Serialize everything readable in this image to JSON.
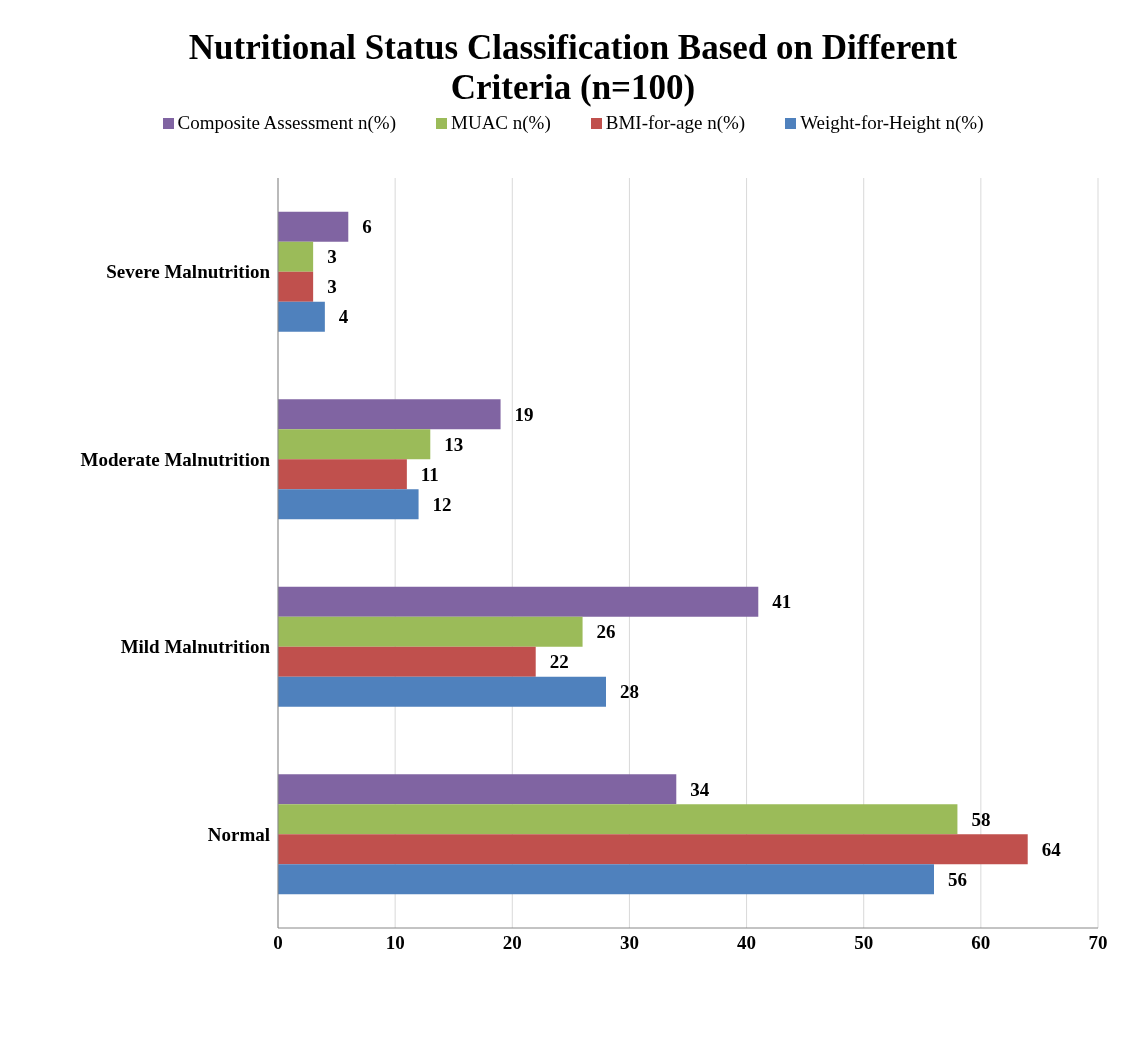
{
  "chart_data": {
    "type": "bar",
    "orientation": "horizontal",
    "title": "Nutritional Status Classification Based on Different Criteria (n=100)",
    "categories": [
      "Severe Malnutrition",
      "Moderate Malnutrition",
      "Mild Malnutrition",
      "Normal"
    ],
    "series": [
      {
        "name": "Composite Assessment n(%)",
        "color": "#8064a2",
        "values": [
          6,
          19,
          41,
          34
        ]
      },
      {
        "name": "MUAC n(%)",
        "color": "#9bbb59",
        "values": [
          3,
          13,
          26,
          58
        ]
      },
      {
        "name": "BMI-for-age n(%)",
        "color": "#c0504d",
        "values": [
          3,
          11,
          22,
          64
        ]
      },
      {
        "name": "Weight-for-Height n(%)",
        "color": "#4f81bd",
        "values": [
          4,
          12,
          28,
          56
        ]
      }
    ],
    "xlim": [
      0,
      70
    ],
    "xticks": [
      0,
      10,
      20,
      30,
      40,
      50,
      60,
      70
    ],
    "grid": "x",
    "legend": "top",
    "data_labels": true
  }
}
